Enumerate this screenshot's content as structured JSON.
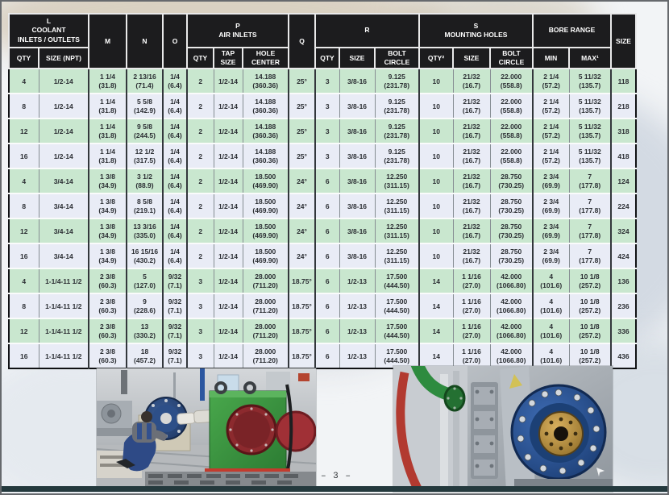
{
  "page": {
    "number_label": "– 3 –"
  },
  "table": {
    "groups": [
      {
        "label": "L\nCOOLANT\nINLETS / OUTLETS",
        "cols": [
          "QTY",
          "SIZE (NPT)"
        ]
      },
      {
        "label": "M"
      },
      {
        "label": "N"
      },
      {
        "label": "O"
      },
      {
        "label": "P\nAIR INLETS",
        "cols": [
          "QTY",
          "TAP\nSIZE",
          "HOLE\nCENTER"
        ]
      },
      {
        "label": "Q"
      },
      {
        "label": "R",
        "cols": [
          "QTY",
          "SIZE",
          "BOLT\nCIRCLE"
        ]
      },
      {
        "label": "S\nMOUNTING HOLES",
        "cols": [
          "QTY²",
          "SIZE",
          "BOLT\nCIRCLE"
        ]
      },
      {
        "label": "BORE RANGE",
        "cols": [
          "MIN",
          "MAX¹"
        ]
      },
      {
        "label": "SIZE"
      }
    ],
    "rows": [
      [
        "4",
        "1/2-14",
        "1 1/4\n(31.8)",
        "2 13/16\n(71.4)",
        "1/4\n(6.4)",
        "2",
        "1/2-14",
        "14.188\n(360.36)",
        "25°",
        "3",
        "3/8-16",
        "9.125\n(231.78)",
        "10",
        "21/32\n(16.7)",
        "22.000\n(558.8)",
        "2 1/4\n(57.2)",
        "5 11/32\n(135.7)",
        "118"
      ],
      [
        "8",
        "1/2-14",
        "1 1/4\n(31.8)",
        "5 5/8\n(142.9)",
        "1/4\n(6.4)",
        "2",
        "1/2-14",
        "14.188\n(360.36)",
        "25°",
        "3",
        "3/8-16",
        "9.125\n(231.78)",
        "10",
        "21/32\n(16.7)",
        "22.000\n(558.8)",
        "2 1/4\n(57.2)",
        "5 11/32\n(135.7)",
        "218"
      ],
      [
        "12",
        "1/2-14",
        "1 1/4\n(31.8)",
        "9 5/8\n(244.5)",
        "1/4\n(6.4)",
        "2",
        "1/2-14",
        "14.188\n(360.36)",
        "25°",
        "3",
        "3/8-16",
        "9.125\n(231.78)",
        "10",
        "21/32\n(16.7)",
        "22.000\n(558.8)",
        "2 1/4\n(57.2)",
        "5 11/32\n(135.7)",
        "318"
      ],
      [
        "16",
        "1/2-14",
        "1 1/4\n(31.8)",
        "12 1/2\n(317.5)",
        "1/4\n(6.4)",
        "2",
        "1/2-14",
        "14.188\n(360.36)",
        "25°",
        "3",
        "3/8-16",
        "9.125\n(231.78)",
        "10",
        "21/32\n(16.7)",
        "22.000\n(558.8)",
        "2 1/4\n(57.2)",
        "5 11/32\n(135.7)",
        "418"
      ],
      [
        "4",
        "3/4-14",
        "1 3/8\n(34.9)",
        "3 1/2\n(88.9)",
        "1/4\n(6.4)",
        "2",
        "1/2-14",
        "18.500\n(469.90)",
        "24°",
        "6",
        "3/8-16",
        "12.250\n(311.15)",
        "10",
        "21/32\n(16.7)",
        "28.750\n(730.25)",
        "2 3/4\n(69.9)",
        "7\n(177.8)",
        "124"
      ],
      [
        "8",
        "3/4-14",
        "1 3/8\n(34.9)",
        "8 5/8\n(219.1)",
        "1/4\n(6.4)",
        "2",
        "1/2-14",
        "18.500\n(469.90)",
        "24°",
        "6",
        "3/8-16",
        "12.250\n(311.15)",
        "10",
        "21/32\n(16.7)",
        "28.750\n(730.25)",
        "2 3/4\n(69.9)",
        "7\n(177.8)",
        "224"
      ],
      [
        "12",
        "3/4-14",
        "1 3/8\n(34.9)",
        "13 3/16\n(335.0)",
        "1/4\n(6.4)",
        "2",
        "1/2-14",
        "18.500\n(469.90)",
        "24°",
        "6",
        "3/8-16",
        "12.250\n(311.15)",
        "10",
        "21/32\n(16.7)",
        "28.750\n(730.25)",
        "2 3/4\n(69.9)",
        "7\n(177.8)",
        "324"
      ],
      [
        "16",
        "3/4-14",
        "1 3/8\n(34.9)",
        "16 15/16\n(430.2)",
        "1/4\n(6.4)",
        "2",
        "1/2-14",
        "18.500\n(469.90)",
        "24°",
        "6",
        "3/8-16",
        "12.250\n(311.15)",
        "10",
        "21/32\n(16.7)",
        "28.750\n(730.25)",
        "2 3/4\n(69.9)",
        "7\n(177.8)",
        "424"
      ],
      [
        "4",
        "1-1/4-11 1/2",
        "2 3/8\n(60.3)",
        "5\n(127.0)",
        "9/32\n(7.1)",
        "3",
        "1/2-14",
        "28.000\n(711.20)",
        "18.75°",
        "6",
        "1/2-13",
        "17.500\n(444.50)",
        "14",
        "1 1/16\n(27.0)",
        "42.000\n(1066.80)",
        "4\n(101.6)",
        "10 1/8\n(257.2)",
        "136"
      ],
      [
        "8",
        "1-1/4-11 1/2",
        "2 3/8\n(60.3)",
        "9\n(228.6)",
        "9/32\n(7.1)",
        "3",
        "1/2-14",
        "28.000\n(711.20)",
        "18.75°",
        "6",
        "1/2-13",
        "17.500\n(444.50)",
        "14",
        "1 1/16\n(27.0)",
        "42.000\n(1066.80)",
        "4\n(101.6)",
        "10 1/8\n(257.2)",
        "236"
      ],
      [
        "12",
        "1-1/4-11 1/2",
        "2 3/8\n(60.3)",
        "13\n(330.2)",
        "9/32\n(7.1)",
        "3",
        "1/2-14",
        "28.000\n(711.20)",
        "18.75°",
        "6",
        "1/2-13",
        "17.500\n(444.50)",
        "14",
        "1 1/16\n(27.0)",
        "42.000\n(1066.80)",
        "4\n(101.6)",
        "10 1/8\n(257.2)",
        "336"
      ],
      [
        "16",
        "1-1/4-11 1/2",
        "2 3/8\n(60.3)",
        "18\n(457.2)",
        "9/32\n(7.1)",
        "3",
        "1/2-14",
        "28.000\n(711.20)",
        "18.75°",
        "6",
        "1/2-13",
        "17.500\n(444.50)",
        "14",
        "1 1/16\n(27.0)",
        "42.000\n(1066.80)",
        "4\n(101.6)",
        "10 1/8\n(257.2)",
        "436"
      ]
    ],
    "colors": {
      "row_green": "#c9e7cf",
      "row_alt": "#e9ecf6",
      "header_bg": "#1c1c1e"
    }
  }
}
